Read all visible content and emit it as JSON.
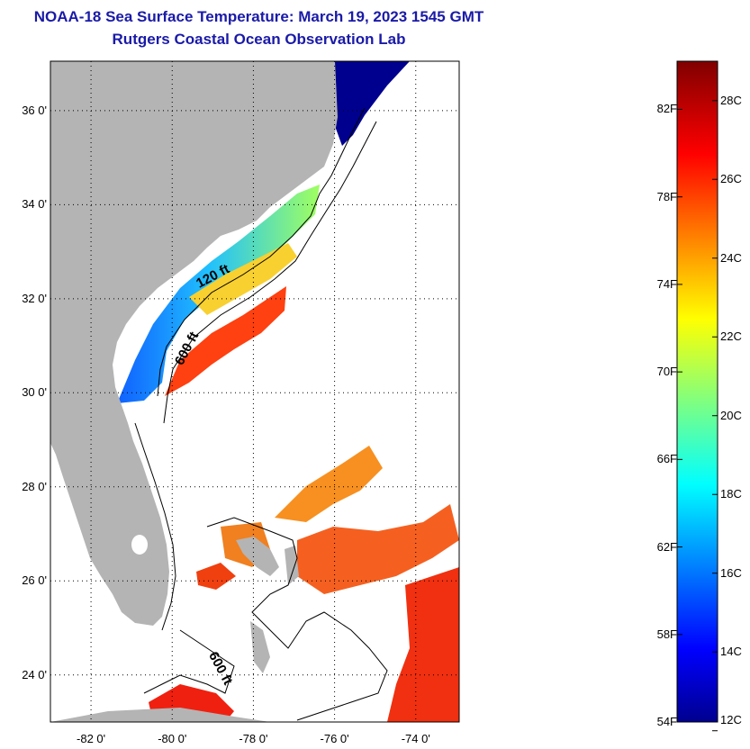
{
  "header": {
    "title": "NOAA-18 Sea Surface Temperature:  March 19, 2023 1545 GMT",
    "subtitle": "Rutgers Coastal Ocean Observation Lab"
  },
  "map": {
    "lat_labels": [
      {
        "value": 36,
        "text": "36 0'"
      },
      {
        "value": 34,
        "text": "34 0'"
      },
      {
        "value": 32,
        "text": "32 0'"
      },
      {
        "value": 30,
        "text": "30 0'"
      },
      {
        "value": 28,
        "text": "28 0'"
      },
      {
        "value": 26,
        "text": "26 0'"
      },
      {
        "value": 24,
        "text": "24 0'"
      }
    ],
    "lon_labels": [
      {
        "value": -82,
        "text": "-82 0'"
      },
      {
        "value": -80,
        "text": "-80 0'"
      },
      {
        "value": -78,
        "text": "-78 0'"
      },
      {
        "value": -76,
        "text": "-76 0'"
      },
      {
        "value": -74,
        "text": "-74 0'"
      }
    ],
    "contour_labels": [
      {
        "text": "120 ft",
        "lon": -78.95,
        "lat": 32.4
      },
      {
        "text": "600 ft",
        "lon": -79.55,
        "lat": 30.9
      },
      {
        "text": "600 ft",
        "lon": -78.9,
        "lat": 24.1
      }
    ],
    "colors": {
      "land": "#b4b4b4",
      "cold": "#0000c8",
      "warm": "#ff3000"
    }
  },
  "colorbar": {
    "fahrenheit": [
      {
        "value": 82,
        "text": "82F"
      },
      {
        "value": 78,
        "text": "78F"
      },
      {
        "value": 74,
        "text": "74F"
      },
      {
        "value": 70,
        "text": "70F"
      },
      {
        "value": 66,
        "text": "66F"
      },
      {
        "value": 62,
        "text": "62F"
      },
      {
        "value": 58,
        "text": "58F"
      },
      {
        "value": 54,
        "text": "54F"
      }
    ],
    "celsius": [
      {
        "value": 28,
        "text": "28C"
      },
      {
        "value": 26,
        "text": "26C"
      },
      {
        "value": 24,
        "text": "24C"
      },
      {
        "value": 22,
        "text": "22C"
      },
      {
        "value": 20,
        "text": "20C"
      },
      {
        "value": 18,
        "text": "18C"
      },
      {
        "value": 16,
        "text": "16C"
      },
      {
        "value": 14,
        "text": "14C"
      },
      {
        "value": 12,
        "text": "12C"
      }
    ]
  }
}
